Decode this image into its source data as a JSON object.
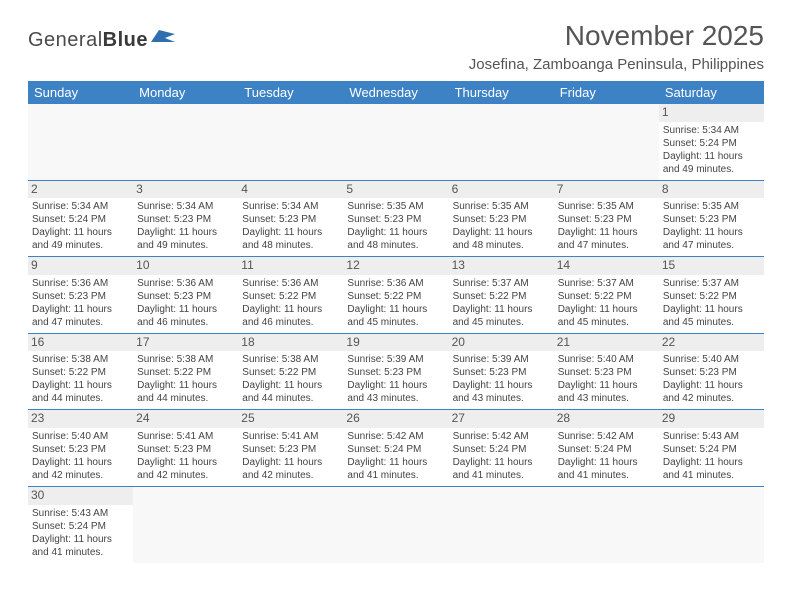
{
  "logo": {
    "text1": "General",
    "text2": "Blue"
  },
  "title": "November 2025",
  "location": "Josefina, Zamboanga Peninsula, Philippines",
  "colors": {
    "header_bg": "#3d82c4",
    "header_text": "#ffffff",
    "daynum_bg": "#eeeeee",
    "border": "#3d82c4",
    "text": "#444444",
    "title_text": "#555555"
  },
  "weekdays": [
    "Sunday",
    "Monday",
    "Tuesday",
    "Wednesday",
    "Thursday",
    "Friday",
    "Saturday"
  ],
  "weeks": [
    [
      null,
      null,
      null,
      null,
      null,
      null,
      {
        "n": "1",
        "sr": "5:34 AM",
        "ss": "5:24 PM",
        "d1": "11 hours",
        "d2": "49 minutes."
      }
    ],
    [
      {
        "n": "2",
        "sr": "5:34 AM",
        "ss": "5:24 PM",
        "d1": "11 hours",
        "d2": "49 minutes."
      },
      {
        "n": "3",
        "sr": "5:34 AM",
        "ss": "5:23 PM",
        "d1": "11 hours",
        "d2": "49 minutes."
      },
      {
        "n": "4",
        "sr": "5:34 AM",
        "ss": "5:23 PM",
        "d1": "11 hours",
        "d2": "48 minutes."
      },
      {
        "n": "5",
        "sr": "5:35 AM",
        "ss": "5:23 PM",
        "d1": "11 hours",
        "d2": "48 minutes."
      },
      {
        "n": "6",
        "sr": "5:35 AM",
        "ss": "5:23 PM",
        "d1": "11 hours",
        "d2": "48 minutes."
      },
      {
        "n": "7",
        "sr": "5:35 AM",
        "ss": "5:23 PM",
        "d1": "11 hours",
        "d2": "47 minutes."
      },
      {
        "n": "8",
        "sr": "5:35 AM",
        "ss": "5:23 PM",
        "d1": "11 hours",
        "d2": "47 minutes."
      }
    ],
    [
      {
        "n": "9",
        "sr": "5:36 AM",
        "ss": "5:23 PM",
        "d1": "11 hours",
        "d2": "47 minutes."
      },
      {
        "n": "10",
        "sr": "5:36 AM",
        "ss": "5:23 PM",
        "d1": "11 hours",
        "d2": "46 minutes."
      },
      {
        "n": "11",
        "sr": "5:36 AM",
        "ss": "5:22 PM",
        "d1": "11 hours",
        "d2": "46 minutes."
      },
      {
        "n": "12",
        "sr": "5:36 AM",
        "ss": "5:22 PM",
        "d1": "11 hours",
        "d2": "45 minutes."
      },
      {
        "n": "13",
        "sr": "5:37 AM",
        "ss": "5:22 PM",
        "d1": "11 hours",
        "d2": "45 minutes."
      },
      {
        "n": "14",
        "sr": "5:37 AM",
        "ss": "5:22 PM",
        "d1": "11 hours",
        "d2": "45 minutes."
      },
      {
        "n": "15",
        "sr": "5:37 AM",
        "ss": "5:22 PM",
        "d1": "11 hours",
        "d2": "45 minutes."
      }
    ],
    [
      {
        "n": "16",
        "sr": "5:38 AM",
        "ss": "5:22 PM",
        "d1": "11 hours",
        "d2": "44 minutes."
      },
      {
        "n": "17",
        "sr": "5:38 AM",
        "ss": "5:22 PM",
        "d1": "11 hours",
        "d2": "44 minutes."
      },
      {
        "n": "18",
        "sr": "5:38 AM",
        "ss": "5:22 PM",
        "d1": "11 hours",
        "d2": "44 minutes."
      },
      {
        "n": "19",
        "sr": "5:39 AM",
        "ss": "5:23 PM",
        "d1": "11 hours",
        "d2": "43 minutes."
      },
      {
        "n": "20",
        "sr": "5:39 AM",
        "ss": "5:23 PM",
        "d1": "11 hours",
        "d2": "43 minutes."
      },
      {
        "n": "21",
        "sr": "5:40 AM",
        "ss": "5:23 PM",
        "d1": "11 hours",
        "d2": "43 minutes."
      },
      {
        "n": "22",
        "sr": "5:40 AM",
        "ss": "5:23 PM",
        "d1": "11 hours",
        "d2": "42 minutes."
      }
    ],
    [
      {
        "n": "23",
        "sr": "5:40 AM",
        "ss": "5:23 PM",
        "d1": "11 hours",
        "d2": "42 minutes."
      },
      {
        "n": "24",
        "sr": "5:41 AM",
        "ss": "5:23 PM",
        "d1": "11 hours",
        "d2": "42 minutes."
      },
      {
        "n": "25",
        "sr": "5:41 AM",
        "ss": "5:23 PM",
        "d1": "11 hours",
        "d2": "42 minutes."
      },
      {
        "n": "26",
        "sr": "5:42 AM",
        "ss": "5:24 PM",
        "d1": "11 hours",
        "d2": "41 minutes."
      },
      {
        "n": "27",
        "sr": "5:42 AM",
        "ss": "5:24 PM",
        "d1": "11 hours",
        "d2": "41 minutes."
      },
      {
        "n": "28",
        "sr": "5:42 AM",
        "ss": "5:24 PM",
        "d1": "11 hours",
        "d2": "41 minutes."
      },
      {
        "n": "29",
        "sr": "5:43 AM",
        "ss": "5:24 PM",
        "d1": "11 hours",
        "d2": "41 minutes."
      }
    ],
    [
      {
        "n": "30",
        "sr": "5:43 AM",
        "ss": "5:24 PM",
        "d1": "11 hours",
        "d2": "41 minutes."
      },
      null,
      null,
      null,
      null,
      null,
      null
    ]
  ],
  "labels": {
    "sunrise": "Sunrise:",
    "sunset": "Sunset:",
    "daylight": "Daylight:",
    "and": "and"
  }
}
